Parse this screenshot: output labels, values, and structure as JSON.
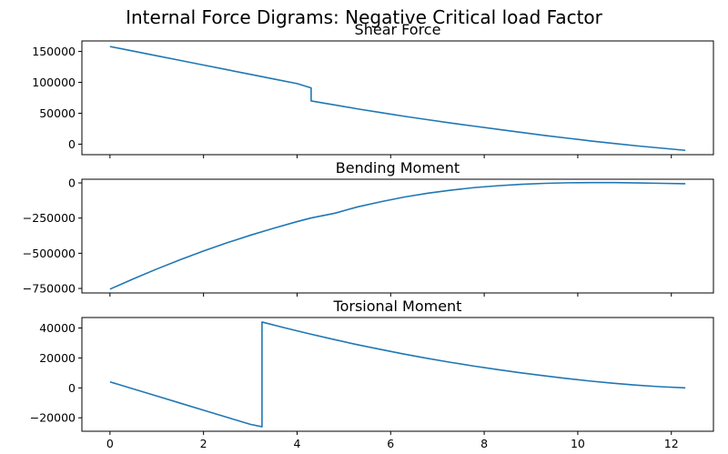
{
  "figure_title": "Internal Force Digrams: Negative Critical load Factor",
  "line_color": "#1f77b4",
  "chart_data": [
    {
      "type": "line",
      "title": "Shear Force",
      "xlim": [
        -0.6,
        12.9
      ],
      "ylim": [
        -17000,
        167000
      ],
      "xticks": [
        0,
        2,
        4,
        6,
        8,
        10,
        12
      ],
      "yticks": [
        0,
        50000,
        100000,
        150000
      ],
      "ytick_labels": [
        "0",
        "50000",
        "100000",
        "150000"
      ],
      "show_xtick_labels": false,
      "series": [
        {
          "x": [
            0,
            0.5,
            1,
            1.5,
            2,
            2.5,
            3,
            3.5,
            4,
            4.3,
            4.3,
            4.8,
            5.3,
            5.8,
            6.3,
            6.8,
            7.3,
            7.8,
            8.3,
            8.8,
            9.3,
            9.8,
            10.3,
            10.8,
            11.3,
            11.8,
            12.3
          ],
          "y": [
            158000,
            150500,
            143000,
            135500,
            128000,
            120500,
            113000,
            105500,
            98000,
            91000,
            70000,
            63500,
            57000,
            51000,
            45000,
            39500,
            34000,
            29000,
            24000,
            19000,
            14000,
            9500,
            5000,
            1000,
            -3000,
            -6500,
            -10000
          ]
        }
      ]
    },
    {
      "type": "line",
      "title": "Bending Moment",
      "xlim": [
        -0.6,
        12.9
      ],
      "ylim": [
        -782000,
        26000
      ],
      "xticks": [
        0,
        2,
        4,
        6,
        8,
        10,
        12
      ],
      "yticks": [
        0,
        -250000,
        -500000,
        -750000
      ],
      "ytick_labels": [
        "0",
        "−250000",
        "−500000",
        "−750000"
      ],
      "show_xtick_labels": false,
      "series": [
        {
          "x": [
            0,
            0.5,
            1,
            1.5,
            2,
            2.5,
            3,
            3.5,
            4,
            4.3,
            4.8,
            5.3,
            5.8,
            6.3,
            6.8,
            7.3,
            7.8,
            8.3,
            8.8,
            9.3,
            9.8,
            10.3,
            10.8,
            11.3,
            11.8,
            12.3
          ],
          "y": [
            -755000,
            -682000,
            -612000,
            -546000,
            -484000,
            -426000,
            -372000,
            -322000,
            -275000,
            -249000,
            -216000,
            -170000,
            -133000,
            -100000,
            -73000,
            -51000,
            -33000,
            -20000,
            -10000,
            -3000,
            1000,
            2000,
            2000,
            0,
            -3000,
            -6000
          ]
        }
      ]
    },
    {
      "type": "line",
      "title": "Torsional Moment",
      "xlim": [
        -0.6,
        12.9
      ],
      "ylim": [
        -29000,
        47000
      ],
      "xticks": [
        0,
        2,
        4,
        6,
        8,
        10,
        12
      ],
      "yticks": [
        -20000,
        0,
        20000,
        40000
      ],
      "ytick_labels": [
        "−20000",
        "0",
        "20000",
        "40000"
      ],
      "xtick_labels": [
        "0",
        "2",
        "4",
        "6",
        "8",
        "10",
        "12"
      ],
      "show_xtick_labels": true,
      "series": [
        {
          "x": [
            0,
            0.5,
            1,
            1.5,
            2,
            2.5,
            3,
            3.25,
            3.25,
            3.75,
            4.25,
            4.75,
            5.25,
            5.75,
            6.25,
            6.75,
            7.25,
            7.75,
            8.25,
            8.75,
            9.25,
            9.75,
            10.25,
            10.75,
            11.25,
            11.75,
            12.3
          ],
          "y": [
            4000,
            -730,
            -5460,
            -10190,
            -14920,
            -19650,
            -24380,
            -26000,
            44000,
            40000,
            36200,
            32600,
            29100,
            25900,
            22800,
            19900,
            17200,
            14700,
            12400,
            10200,
            8200,
            6300,
            4600,
            3100,
            1800,
            800,
            0
          ]
        }
      ]
    }
  ]
}
